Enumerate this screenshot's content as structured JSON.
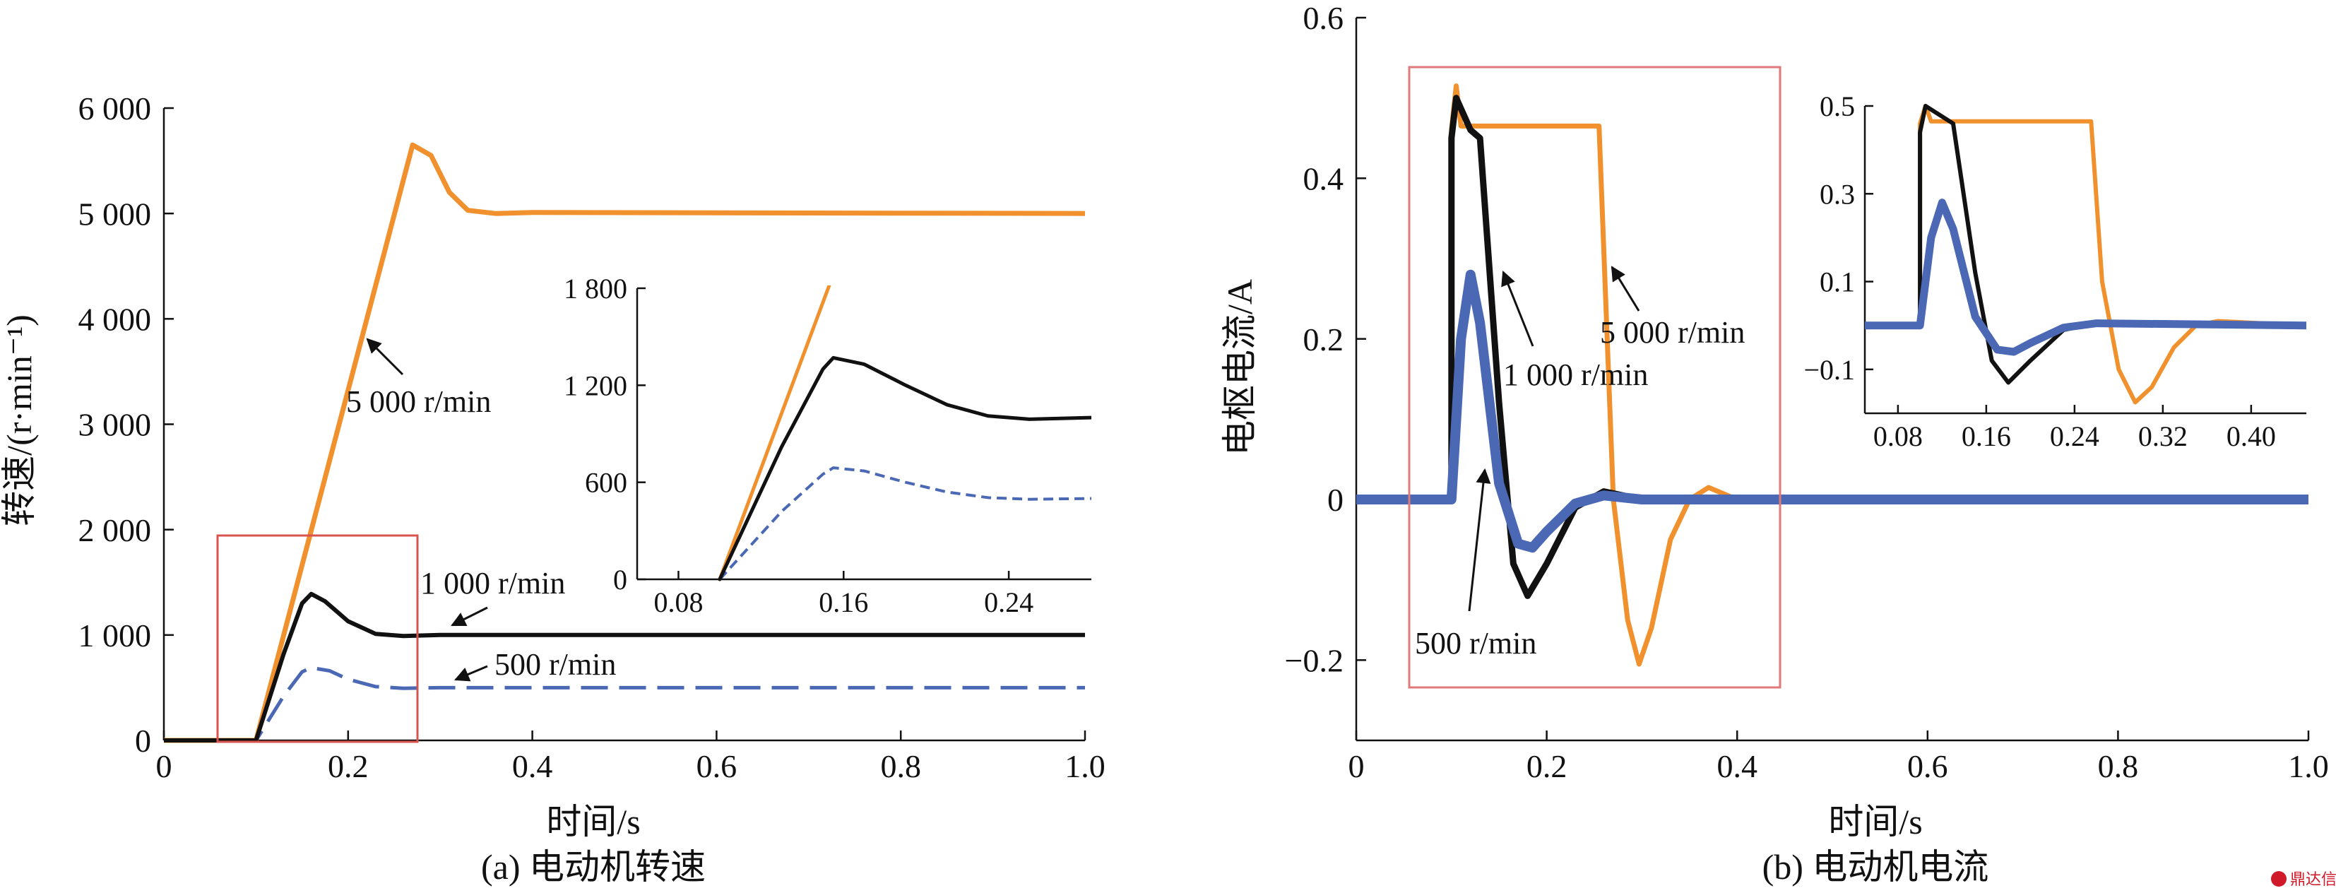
{
  "charts": [
    {
      "id": "a",
      "type": "line",
      "caption": "(a) 电动机转速",
      "xlabel": "时间/s",
      "ylabel": "转速/(r·min⁻¹)",
      "xlim": [
        0,
        1.0
      ],
      "ylim": [
        0,
        6000
      ],
      "xticks": [
        "0",
        "0.2",
        "0.4",
        "0.6",
        "0.8",
        "1.0"
      ],
      "yticks": [
        "0",
        "1 000",
        "2 000",
        "3 000",
        "4 000",
        "5 000",
        "6 000"
      ],
      "series": [
        {
          "name": "5 000 r/min",
          "color": "#f0912e",
          "style": "solid",
          "points": [
            [
              0,
              0
            ],
            [
              0.1,
              0
            ],
            [
              0.27,
              5650
            ],
            [
              0.29,
              5550
            ],
            [
              0.31,
              5200
            ],
            [
              0.33,
              5030
            ],
            [
              0.36,
              5000
            ],
            [
              0.4,
              5010
            ],
            [
              1.0,
              5000
            ]
          ]
        },
        {
          "name": "1 000 r/min",
          "color": "#111111",
          "style": "solid",
          "points": [
            [
              0,
              0
            ],
            [
              0.1,
              0
            ],
            [
              0.13,
              820
            ],
            [
              0.15,
              1300
            ],
            [
              0.16,
              1390
            ],
            [
              0.175,
              1320
            ],
            [
              0.2,
              1130
            ],
            [
              0.23,
              1010
            ],
            [
              0.26,
              990
            ],
            [
              0.3,
              1000
            ],
            [
              1.0,
              1000
            ]
          ]
        },
        {
          "name": "500 r/min",
          "color": "#4a68b4",
          "style": "dashed",
          "points": [
            [
              0,
              0
            ],
            [
              0.1,
              0
            ],
            [
              0.13,
              420
            ],
            [
              0.15,
              650
            ],
            [
              0.16,
              690
            ],
            [
              0.18,
              660
            ],
            [
              0.2,
              580
            ],
            [
              0.23,
              510
            ],
            [
              0.26,
              495
            ],
            [
              0.3,
              500
            ],
            [
              1.0,
              500
            ]
          ]
        }
      ],
      "annotations": [
        {
          "text": "5 000  r/min"
        },
        {
          "text": "1 000  r/min"
        },
        {
          "text": "500  r/min"
        }
      ],
      "inset": {
        "xlim": [
          0.06,
          0.28
        ],
        "ylim": [
          0,
          1800
        ],
        "xticks": [
          "0.08",
          "0.16",
          "0.24"
        ],
        "yticks": [
          "0",
          "600",
          "1 200",
          "1 800"
        ],
        "series": [
          {
            "name": "5 000 r/min",
            "color": "#f0912e",
            "style": "solid",
            "points": [
              [
                0.1,
                0
              ],
              [
                0.154,
                1850
              ]
            ]
          },
          {
            "name": "1 000 r/min",
            "color": "#111111",
            "style": "solid",
            "points": [
              [
                0.1,
                0
              ],
              [
                0.13,
                820
              ],
              [
                0.15,
                1300
              ],
              [
                0.155,
                1370
              ],
              [
                0.17,
                1330
              ],
              [
                0.19,
                1200
              ],
              [
                0.21,
                1080
              ],
              [
                0.23,
                1010
              ],
              [
                0.25,
                990
              ],
              [
                0.28,
                1000
              ]
            ]
          },
          {
            "name": "500 r/min",
            "color": "#4a68b4",
            "style": "dashed",
            "points": [
              [
                0.1,
                0
              ],
              [
                0.13,
                420
              ],
              [
                0.15,
                650
              ],
              [
                0.155,
                690
              ],
              [
                0.17,
                670
              ],
              [
                0.19,
                600
              ],
              [
                0.21,
                540
              ],
              [
                0.23,
                505
              ],
              [
                0.25,
                495
              ],
              [
                0.28,
                500
              ]
            ]
          }
        ]
      }
    },
    {
      "id": "b",
      "type": "line",
      "caption": "(b) 电动机电流",
      "xlabel": "时间/s",
      "ylabel": "电枢电流/A",
      "xlim": [
        0,
        1.0
      ],
      "ylim": [
        -0.3,
        0.6
      ],
      "xticks": [
        "0",
        "0.2",
        "0.4",
        "0.6",
        "0.8",
        "1.0"
      ],
      "yticks": [
        "−0.2",
        "0",
        "0.2",
        "0.4",
        "0.6"
      ],
      "series": [
        {
          "name": "5 000 r/min",
          "color": "#f0912e",
          "style": "solid",
          "points": [
            [
              0,
              0
            ],
            [
              0.1,
              0
            ],
            [
              0.1,
              0.46
            ],
            [
              0.105,
              0.515
            ],
            [
              0.11,
              0.465
            ],
            [
              0.255,
              0.465
            ],
            [
              0.27,
              0.0
            ],
            [
              0.285,
              -0.15
            ],
            [
              0.297,
              -0.205
            ],
            [
              0.31,
              -0.16
            ],
            [
              0.33,
              -0.05
            ],
            [
              0.35,
              0.0
            ],
            [
              0.37,
              0.015
            ],
            [
              0.4,
              0.0
            ],
            [
              1.0,
              0.0
            ]
          ]
        },
        {
          "name": "1 000 r/min",
          "color": "#111111",
          "style": "solid",
          "points": [
            [
              0,
              0
            ],
            [
              0.1,
              0
            ],
            [
              0.1,
              0.45
            ],
            [
              0.105,
              0.5
            ],
            [
              0.12,
              0.46
            ],
            [
              0.13,
              0.45
            ],
            [
              0.15,
              0.12
            ],
            [
              0.165,
              -0.08
            ],
            [
              0.18,
              -0.12
            ],
            [
              0.2,
              -0.08
            ],
            [
              0.23,
              -0.01
            ],
            [
              0.26,
              0.01
            ],
            [
              0.3,
              0.0
            ],
            [
              1.0,
              0.0
            ]
          ]
        },
        {
          "name": "500 r/min",
          "color": "#4a68b4",
          "style": "solid",
          "points": [
            [
              0,
              0
            ],
            [
              0.1,
              0
            ],
            [
              0.11,
              0.2
            ],
            [
              0.12,
              0.28
            ],
            [
              0.13,
              0.22
            ],
            [
              0.15,
              0.02
            ],
            [
              0.17,
              -0.055
            ],
            [
              0.185,
              -0.06
            ],
            [
              0.2,
              -0.04
            ],
            [
              0.23,
              -0.005
            ],
            [
              0.26,
              0.005
            ],
            [
              0.3,
              0.0
            ],
            [
              1.0,
              0.0
            ]
          ]
        }
      ],
      "annotations": [
        {
          "text": "5 000 r/min"
        },
        {
          "text": "1 000 r/min"
        },
        {
          "text": "500  r/min"
        }
      ],
      "inset": {
        "xlim": [
          0.05,
          0.45
        ],
        "ylim": [
          -0.2,
          0.5
        ],
        "xticks": [
          "0.08",
          "0.16",
          "0.24",
          "0.32",
          "0.40"
        ],
        "yticks": [
          "−0.1",
          "0.1",
          "0.3",
          "0.5"
        ],
        "series": [
          {
            "name": "5 000 r/min",
            "color": "#f0912e",
            "style": "solid",
            "points": [
              [
                0.05,
                0
              ],
              [
                0.1,
                0
              ],
              [
                0.1,
                0.46
              ],
              [
                0.105,
                0.5
              ],
              [
                0.11,
                0.465
              ],
              [
                0.255,
                0.465
              ],
              [
                0.265,
                0.1
              ],
              [
                0.28,
                -0.1
              ],
              [
                0.295,
                -0.175
              ],
              [
                0.31,
                -0.14
              ],
              [
                0.33,
                -0.05
              ],
              [
                0.35,
                0.0
              ],
              [
                0.37,
                0.01
              ],
              [
                0.45,
                0.0
              ]
            ]
          },
          {
            "name": "1 000 r/min",
            "color": "#111111",
            "style": "solid",
            "points": [
              [
                0.05,
                0
              ],
              [
                0.1,
                0
              ],
              [
                0.1,
                0.44
              ],
              [
                0.105,
                0.5
              ],
              [
                0.13,
                0.46
              ],
              [
                0.15,
                0.12
              ],
              [
                0.165,
                -0.08
              ],
              [
                0.18,
                -0.13
              ],
              [
                0.2,
                -0.08
              ],
              [
                0.23,
                -0.01
              ],
              [
                0.26,
                0.005
              ],
              [
                0.45,
                0.0
              ]
            ]
          },
          {
            "name": "500 r/min",
            "color": "#4a68b4",
            "style": "solid",
            "points": [
              [
                0.05,
                0
              ],
              [
                0.1,
                0
              ],
              [
                0.11,
                0.2
              ],
              [
                0.12,
                0.28
              ],
              [
                0.13,
                0.22
              ],
              [
                0.15,
                0.02
              ],
              [
                0.17,
                -0.055
              ],
              [
                0.185,
                -0.06
              ],
              [
                0.2,
                -0.04
              ],
              [
                0.23,
                -0.005
              ],
              [
                0.26,
                0.005
              ],
              [
                0.45,
                0.0
              ]
            ]
          }
        ]
      }
    }
  ],
  "watermark": "鼎达信"
}
